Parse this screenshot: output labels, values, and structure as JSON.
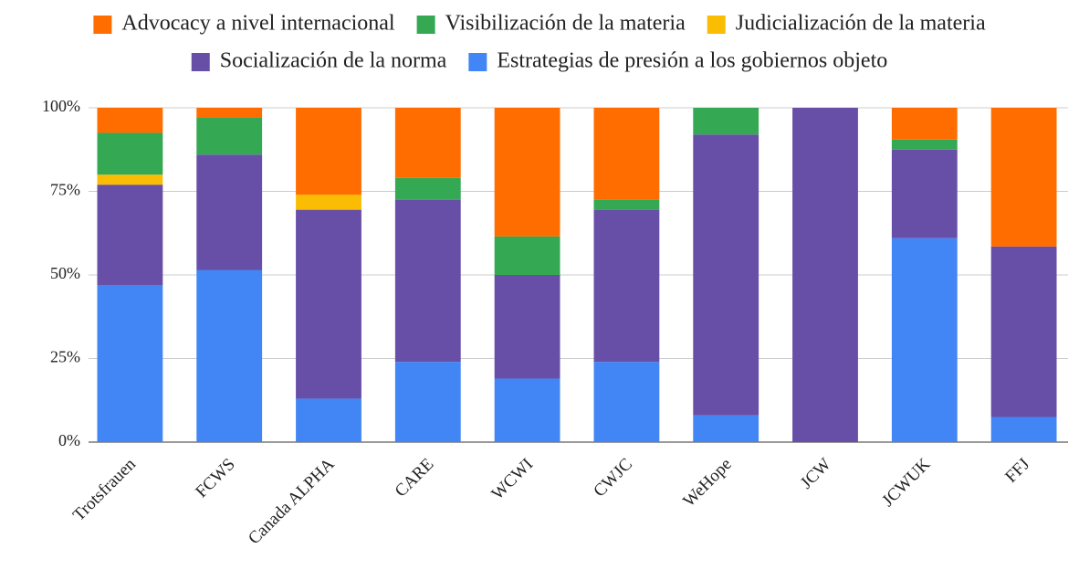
{
  "chart_data": {
    "type": "stacked_bar",
    "categories": [
      "Trotsfrauen",
      "FCWS",
      "Canada ALPHA",
      "CARE",
      "WCWI",
      "CWJC",
      "WeHope",
      "JCW",
      "JCWUK",
      "FFJ"
    ],
    "series": [
      {
        "name": "Estrategias de presión a los gobiernos objeto",
        "color": "#4285f4",
        "values": [
          47,
          51.5,
          13,
          24,
          19,
          24,
          8,
          0,
          61,
          7.5
        ]
      },
      {
        "name": "Socialización de la norma",
        "color": "#674ea7",
        "values": [
          30,
          34.5,
          56.5,
          48.5,
          31,
          45.5,
          84,
          100,
          26.5,
          51
        ]
      },
      {
        "name": "Judicialización de la materia",
        "color": "#fbbc04",
        "values": [
          3,
          0,
          4.5,
          0,
          0,
          0,
          0,
          0,
          0,
          0
        ]
      },
      {
        "name": "Visibilización de la materia",
        "color": "#34a853",
        "values": [
          12.5,
          11,
          0,
          6.5,
          11.5,
          3,
          8,
          0,
          3,
          0
        ]
      },
      {
        "name": "Advocacy a nivel internacional",
        "color": "#ff6d01",
        "values": [
          7.5,
          3,
          26,
          21,
          38.5,
          27.5,
          0,
          0,
          9.5,
          41.5
        ]
      }
    ],
    "ylim": [
      0,
      100
    ],
    "yticks": [
      {
        "value": 0,
        "label": "0%"
      },
      {
        "value": 25,
        "label": "25%"
      },
      {
        "value": 50,
        "label": "50%"
      },
      {
        "value": 75,
        "label": "75%"
      },
      {
        "value": 100,
        "label": "100%"
      }
    ],
    "grid": true,
    "legend": "top"
  }
}
